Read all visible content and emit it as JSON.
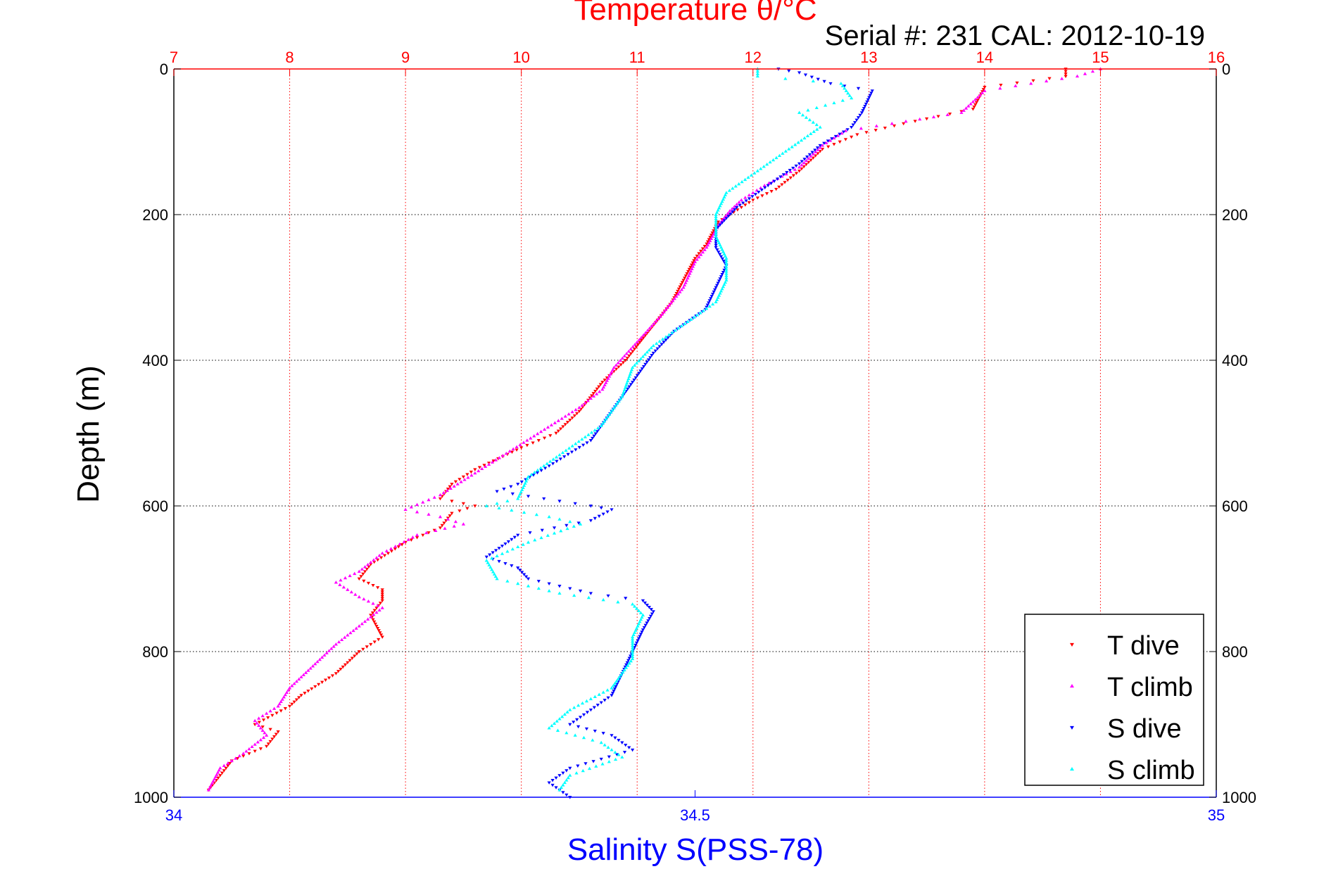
{
  "chart_data": {
    "type": "scatter",
    "title": "Temperature θ/°C",
    "annotation": "Serial #: 231  CAL: 2012-10-19",
    "ylabel": "Depth (m)",
    "x_top_label": "Temperature θ/°C",
    "x_bottom_label": "Salinity S(PSS-78)",
    "x_top_lim": [
      7,
      16
    ],
    "x_top_ticks": [
      "7",
      "8",
      "9",
      "10",
      "11",
      "12",
      "13",
      "14",
      "15",
      "16"
    ],
    "x_bottom_lim": [
      34,
      35
    ],
    "x_bottom_ticks": [
      "34",
      "34.5",
      "35"
    ],
    "ylim": [
      0,
      1000
    ],
    "y_reversed": true,
    "y_ticks": [
      "0",
      "200",
      "400",
      "600",
      "800",
      "1000"
    ],
    "grid": true,
    "legend_position": "bottom-right",
    "series": [
      {
        "name": "T dive",
        "axis": "temperature",
        "marker": "triangle-down",
        "color": "#ff0000",
        "points": [
          [
            14.7,
            0
          ],
          [
            14.7,
            10
          ],
          [
            14.0,
            25
          ],
          [
            13.9,
            55
          ],
          [
            13.3,
            75
          ],
          [
            12.9,
            90
          ],
          [
            12.6,
            110
          ],
          [
            12.4,
            140
          ],
          [
            12.2,
            165
          ],
          [
            12.0,
            180
          ],
          [
            11.9,
            190
          ],
          [
            11.7,
            210
          ],
          [
            11.6,
            240
          ],
          [
            11.5,
            260
          ],
          [
            11.4,
            290
          ],
          [
            11.3,
            320
          ],
          [
            11.1,
            360
          ],
          [
            10.9,
            400
          ],
          [
            10.7,
            430
          ],
          [
            10.5,
            470
          ],
          [
            10.3,
            500
          ],
          [
            10.0,
            520
          ],
          [
            9.6,
            550
          ],
          [
            9.4,
            570
          ],
          [
            9.3,
            590
          ],
          [
            9.6,
            600
          ],
          [
            9.4,
            610
          ],
          [
            9.3,
            630
          ],
          [
            9.0,
            650
          ],
          [
            8.7,
            680
          ],
          [
            8.6,
            700
          ],
          [
            8.8,
            715
          ],
          [
            8.8,
            730
          ],
          [
            8.7,
            750
          ],
          [
            8.8,
            780
          ],
          [
            8.6,
            800
          ],
          [
            8.4,
            830
          ],
          [
            8.1,
            860
          ],
          [
            8.0,
            875
          ],
          [
            7.7,
            900
          ],
          [
            7.9,
            910
          ],
          [
            7.8,
            930
          ],
          [
            7.5,
            950
          ],
          [
            7.4,
            970
          ],
          [
            7.3,
            990
          ]
        ]
      },
      {
        "name": "T climb",
        "axis": "temperature",
        "marker": "triangle-up",
        "color": "#ff00ff",
        "points": [
          [
            15.0,
            0
          ],
          [
            14.8,
            10
          ],
          [
            14.0,
            30
          ],
          [
            13.8,
            60
          ],
          [
            13.2,
            75
          ],
          [
            12.8,
            85
          ],
          [
            12.6,
            105
          ],
          [
            12.4,
            135
          ],
          [
            12.1,
            160
          ],
          [
            11.9,
            180
          ],
          [
            11.8,
            195
          ],
          [
            11.7,
            215
          ],
          [
            11.6,
            245
          ],
          [
            11.5,
            265
          ],
          [
            11.4,
            300
          ],
          [
            11.2,
            340
          ],
          [
            11.0,
            375
          ],
          [
            10.8,
            410
          ],
          [
            10.7,
            440
          ],
          [
            10.5,
            465
          ],
          [
            10.2,
            495
          ],
          [
            9.9,
            525
          ],
          [
            9.6,
            555
          ],
          [
            9.3,
            585
          ],
          [
            9.0,
            605
          ],
          [
            9.3,
            615
          ],
          [
            9.5,
            625
          ],
          [
            9.1,
            640
          ],
          [
            8.8,
            665
          ],
          [
            8.6,
            690
          ],
          [
            8.4,
            705
          ],
          [
            8.6,
            725
          ],
          [
            8.8,
            740
          ],
          [
            8.6,
            765
          ],
          [
            8.4,
            790
          ],
          [
            8.2,
            820
          ],
          [
            8.0,
            850
          ],
          [
            7.9,
            875
          ],
          [
            7.7,
            895
          ],
          [
            7.8,
            915
          ],
          [
            7.6,
            940
          ],
          [
            7.4,
            960
          ],
          [
            7.3,
            990
          ]
        ]
      },
      {
        "name": "S dive",
        "axis": "salinity",
        "marker": "triangle-down",
        "color": "#0000ff",
        "points": [
          [
            34.58,
            0
          ],
          [
            34.6,
            5
          ],
          [
            34.63,
            20
          ],
          [
            34.67,
            30
          ],
          [
            34.66,
            60
          ],
          [
            34.65,
            80
          ],
          [
            34.62,
            105
          ],
          [
            34.6,
            130
          ],
          [
            34.57,
            160
          ],
          [
            34.54,
            190
          ],
          [
            34.52,
            220
          ],
          [
            34.52,
            245
          ],
          [
            34.53,
            270
          ],
          [
            34.52,
            300
          ],
          [
            34.51,
            330
          ],
          [
            34.48,
            360
          ],
          [
            34.46,
            390
          ],
          [
            34.44,
            430
          ],
          [
            34.42,
            470
          ],
          [
            34.4,
            510
          ],
          [
            34.36,
            545
          ],
          [
            34.33,
            570
          ],
          [
            34.31,
            580
          ],
          [
            34.4,
            600
          ],
          [
            34.42,
            605
          ],
          [
            34.4,
            620
          ],
          [
            34.33,
            640
          ],
          [
            34.3,
            670
          ],
          [
            34.33,
            685
          ],
          [
            34.34,
            700
          ],
          [
            34.4,
            720
          ],
          [
            34.45,
            730
          ],
          [
            34.46,
            745
          ],
          [
            34.45,
            770
          ],
          [
            34.44,
            800
          ],
          [
            34.43,
            830
          ],
          [
            34.42,
            860
          ],
          [
            34.4,
            880
          ],
          [
            34.38,
            900
          ],
          [
            34.42,
            915
          ],
          [
            34.44,
            935
          ],
          [
            34.38,
            960
          ],
          [
            34.36,
            980
          ],
          [
            34.38,
            1000
          ]
        ]
      },
      {
        "name": "S climb",
        "axis": "salinity",
        "marker": "triangle-up",
        "color": "#00ffff",
        "points": [
          [
            34.56,
            0
          ],
          [
            34.56,
            10
          ],
          [
            34.64,
            20
          ],
          [
            34.65,
            40
          ],
          [
            34.6,
            60
          ],
          [
            34.62,
            80
          ],
          [
            34.59,
            110
          ],
          [
            34.56,
            140
          ],
          [
            34.53,
            170
          ],
          [
            34.52,
            200
          ],
          [
            34.52,
            230
          ],
          [
            34.53,
            260
          ],
          [
            34.53,
            290
          ],
          [
            34.52,
            320
          ],
          [
            34.49,
            350
          ],
          [
            34.46,
            380
          ],
          [
            34.44,
            410
          ],
          [
            34.43,
            450
          ],
          [
            34.41,
            490
          ],
          [
            34.37,
            530
          ],
          [
            34.34,
            560
          ],
          [
            34.33,
            590
          ],
          [
            34.3,
            600
          ],
          [
            34.36,
            615
          ],
          [
            34.39,
            625
          ],
          [
            34.34,
            650
          ],
          [
            34.3,
            675
          ],
          [
            34.31,
            700
          ],
          [
            34.37,
            720
          ],
          [
            34.44,
            735
          ],
          [
            34.45,
            750
          ],
          [
            34.44,
            780
          ],
          [
            34.44,
            810
          ],
          [
            34.42,
            850
          ],
          [
            34.38,
            880
          ],
          [
            34.36,
            905
          ],
          [
            34.41,
            925
          ],
          [
            34.43,
            945
          ],
          [
            34.38,
            970
          ],
          [
            34.37,
            990
          ]
        ]
      }
    ]
  },
  "colors": {
    "temperature_axis": "#ff0000",
    "salinity_axis": "#0000ff",
    "grid_temperature": "#ff0000",
    "grid_depth": "#000000"
  }
}
